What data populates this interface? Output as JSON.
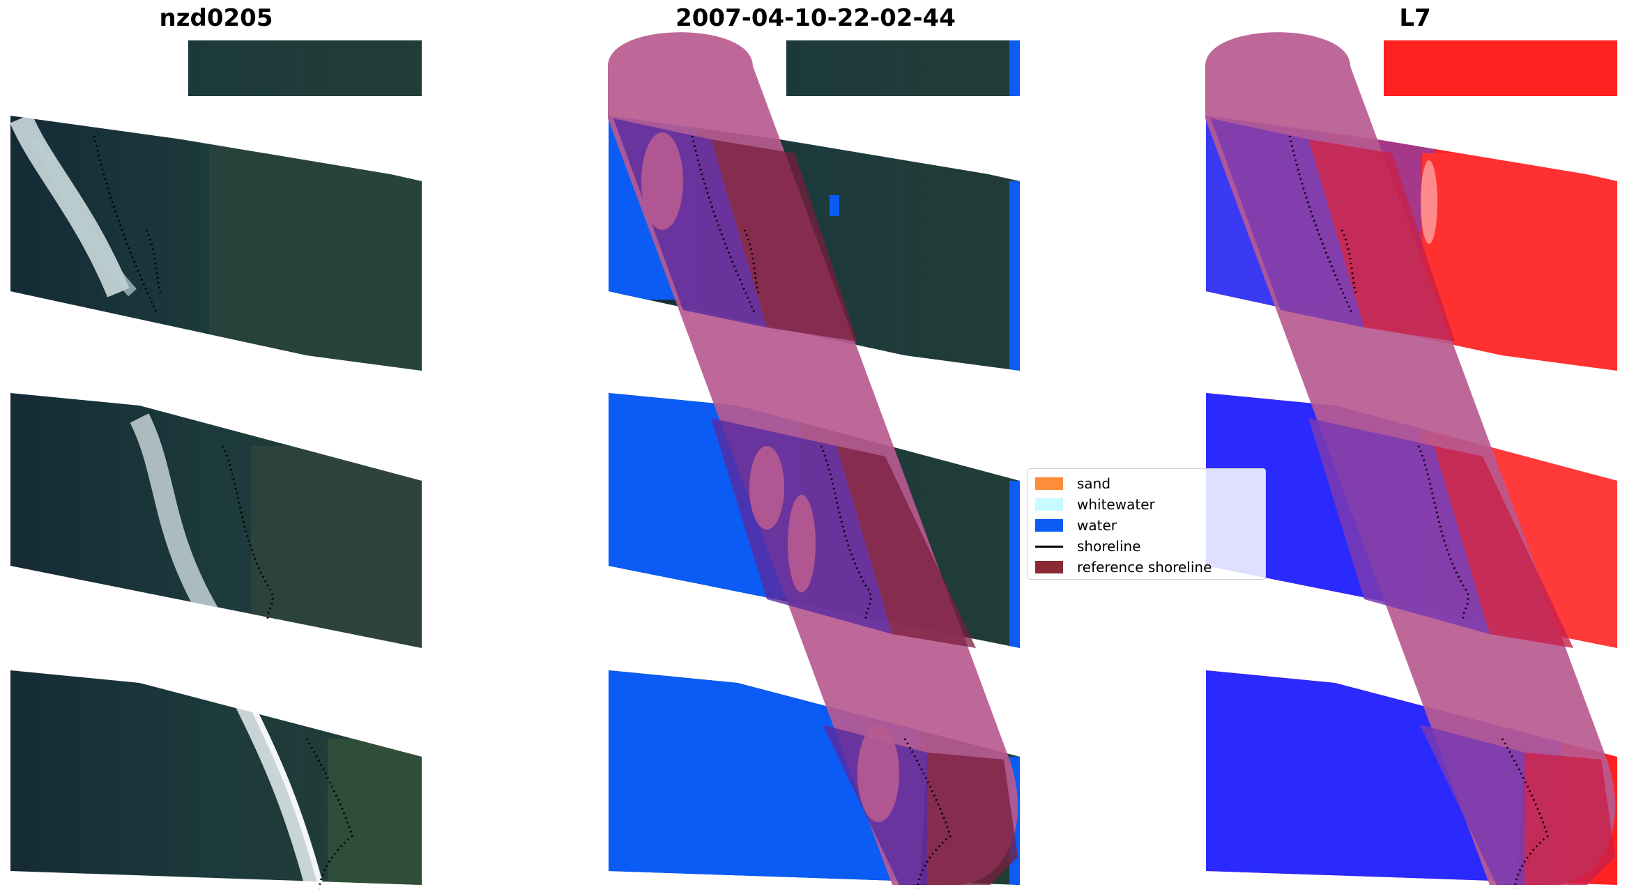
{
  "titles": {
    "left": "nzd0205",
    "center": "2007-04-10-22-02-44",
    "right": "L7"
  },
  "legend": {
    "items": [
      {
        "label": "sand",
        "color": "#ff8c3a",
        "kind": "patch"
      },
      {
        "label": "whitewater",
        "color": "#c8fbff",
        "kind": "patch"
      },
      {
        "label": "water",
        "color": "#0a5cf5",
        "kind": "patch"
      },
      {
        "label": "shoreline",
        "color": "#000000",
        "kind": "line"
      },
      {
        "label": "reference shoreline",
        "color": "#8b2a34",
        "kind": "patch"
      }
    ]
  },
  "colors": {
    "land_rgb": "#1f3a3d",
    "ocean_rgb": "#16303b",
    "whitewater_rgb": "#d8e6ea",
    "water_class": "#0a5cf5",
    "buffer_overlay": "#b85a90",
    "land_index": "#ff2020",
    "water_index": "#2020ff"
  }
}
